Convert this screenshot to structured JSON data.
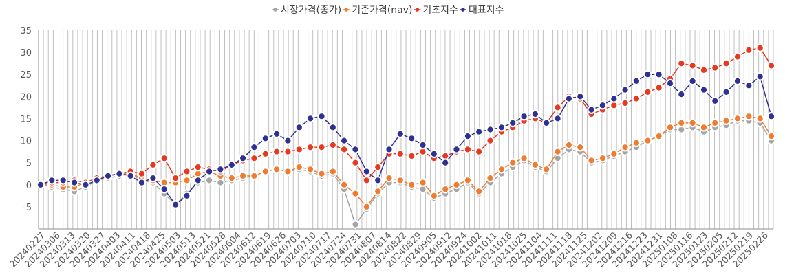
{
  "chart_data": {
    "type": "line",
    "title": "",
    "xlabel": "",
    "ylabel": "",
    "ylim": [
      -10,
      35
    ],
    "yticks": [
      -5,
      0,
      5,
      10,
      15,
      20,
      25,
      30,
      35
    ],
    "grid": "vertical",
    "legend_position": "top-center",
    "x_tick_labels": [
      "20240227",
      "20240306",
      "20240313",
      "20240320",
      "20240327",
      "20240403",
      "20240411",
      "20240418",
      "20240425",
      "20240503",
      "20240513",
      "20240521",
      "20240528",
      "20240604",
      "20240612",
      "20240619",
      "20240626",
      "20240703",
      "20240710",
      "20240717",
      "20240724",
      "20240731",
      "20240807",
      "20240814",
      "20240822",
      "20240829",
      "20240905",
      "20240912",
      "20240924",
      "20241002",
      "20241011",
      "20241018",
      "20241025",
      "20241104",
      "20241111",
      "20241118",
      "20241125",
      "20241202",
      "20241209",
      "20241216",
      "20241223",
      "20241231",
      "20250108",
      "20250116",
      "20250123",
      "20250205",
      "20250212",
      "20250219",
      "20250226"
    ],
    "series": [
      {
        "name": "시장가격(종가)",
        "color": "#a5a5a5",
        "values": [
          0,
          -0.5,
          -1,
          -1.5,
          -0.5,
          1,
          1.5,
          2,
          2.5,
          1,
          0.5,
          -2,
          -4.5,
          -2,
          0.5,
          1,
          0.5,
          1,
          1.5,
          2,
          3,
          3.5,
          3,
          3.5,
          3,
          2,
          2.5,
          -1,
          -9,
          -5.5,
          -2,
          0.5,
          0.5,
          -0.5,
          -1,
          -3,
          -2,
          -1,
          0.5,
          -2,
          0.5,
          2.5,
          4,
          5.5,
          4,
          3,
          6,
          8,
          7.5,
          5,
          5.5,
          6.5,
          7.5,
          8.5,
          10,
          11,
          12.5,
          12.5,
          13,
          12,
          13,
          13.5,
          14.5,
          14.5,
          14,
          10
        ]
      },
      {
        "name": "기준가격(nav)",
        "color": "#ed7d31",
        "values": [
          0,
          0,
          -0.5,
          -0.5,
          0.5,
          1.5,
          2,
          2.5,
          2.5,
          1.5,
          1,
          0.5,
          0.5,
          1,
          2.5,
          3,
          2,
          1.5,
          2,
          2,
          3,
          3.5,
          3,
          4,
          3.5,
          2.5,
          3,
          0,
          -2,
          -5,
          -1.5,
          1.5,
          1,
          0,
          0.5,
          -2.5,
          -1,
          0,
          1,
          -1.5,
          1.5,
          3.5,
          5,
          6,
          4.5,
          3.5,
          7.5,
          9,
          8.5,
          5.5,
          6,
          7,
          8.5,
          9.5,
          10,
          11,
          13,
          14,
          14,
          13,
          14,
          14.5,
          15,
          15.5,
          15,
          11
        ]
      },
      {
        "name": "기초지수",
        "color": "#e8381f",
        "values": [
          0,
          0.5,
          0.5,
          1,
          0.5,
          1.5,
          2,
          2.5,
          3,
          2.5,
          4.5,
          6,
          1.5,
          3,
          4,
          3.5,
          3,
          4.5,
          5.5,
          6,
          7,
          7.5,
          7.5,
          8,
          8.5,
          8.5,
          9,
          8,
          5,
          1,
          4,
          7,
          7,
          6.5,
          7.5,
          6,
          6.5,
          7.5,
          8,
          7.5,
          10,
          12,
          13,
          14.5,
          15,
          14,
          17.5,
          20,
          19.5,
          16,
          17,
          18,
          18.5,
          19.5,
          21,
          22,
          24,
          27.5,
          27,
          26,
          26.5,
          27.5,
          29,
          30.5,
          31,
          27
        ]
      },
      {
        "name": "대표지수",
        "color": "#2e3192",
        "values": [
          0,
          1,
          1,
          0.5,
          0,
          1,
          2,
          2.5,
          2,
          0.5,
          1.5,
          -1,
          -4.5,
          -2.5,
          1,
          3,
          3.5,
          4.5,
          6,
          8.5,
          10.5,
          11.5,
          10,
          13,
          15,
          15.5,
          13,
          10,
          8,
          3,
          1,
          8,
          11.5,
          10.5,
          9,
          7,
          5,
          8,
          11,
          12,
          12.5,
          13,
          14,
          15.5,
          16,
          14,
          15,
          19.5,
          20,
          17,
          18,
          19.5,
          21.5,
          23.5,
          25,
          25,
          23,
          20.5,
          23.5,
          21.5,
          19,
          21,
          23.5,
          22.5,
          24.5,
          15.5
        ]
      }
    ]
  }
}
